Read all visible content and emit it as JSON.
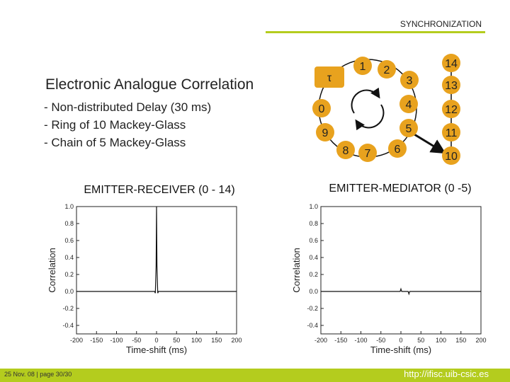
{
  "header": {
    "section": "SYNCHRONIZATION",
    "accent_color": "#b4cc1e"
  },
  "title": "Electronic Analogue Correlation",
  "bullets": [
    "- Non-distributed Delay (30 ms)",
    "- Ring of 10 Mackey-Glass",
    "- Chain of 5 Mackey-Glass"
  ],
  "diagram": {
    "tau_label": "τ",
    "node_color": "#e8a21e",
    "ring_nodes": [
      "0",
      "1",
      "2",
      "3",
      "4",
      "5",
      "6",
      "7",
      "8",
      "9"
    ],
    "chain_nodes": [
      "10",
      "11",
      "12",
      "13",
      "14"
    ]
  },
  "chart_data": [
    {
      "type": "line",
      "title": "EMITTER-RECEIVER (0 - 14)",
      "xlabel": "Time-shift (ms)",
      "ylabel": "Correlation",
      "xlim": [
        -200,
        200
      ],
      "ylim": [
        -0.5,
        1.0
      ],
      "xticks": [
        "-200",
        "-150",
        "-100",
        "-50",
        "0",
        "50",
        "100",
        "150",
        "200"
      ],
      "yticks": [
        "1.0",
        "0.8",
        "0.6",
        "0.4",
        "0.2",
        "0.0",
        "-0.2",
        "-0.4"
      ],
      "grid": false,
      "series": [
        {
          "x": [
            -200,
            -5,
            -3,
            -1,
            0,
            1,
            3,
            5,
            200
          ],
          "y": [
            0.0,
            0.0,
            -0.02,
            0.3,
            1.0,
            0.3,
            -0.02,
            0.0,
            0.0
          ]
        }
      ]
    },
    {
      "type": "line",
      "title": "EMITTER-MEDIATOR (0 -5)",
      "xlabel": "Time-shift (ms)",
      "ylabel": "Correlation",
      "xlim": [
        -200,
        200
      ],
      "ylim": [
        -0.5,
        1.0
      ],
      "xticks": [
        "-200",
        "-150",
        "-100",
        "-50",
        "0",
        "50",
        "100",
        "150",
        "200"
      ],
      "yticks": [
        "1.0",
        "0.8",
        "0.6",
        "0.4",
        "0.2",
        "0.0",
        "-0.2",
        "-0.4"
      ],
      "grid": false,
      "series": [
        {
          "x": [
            -200,
            -2,
            0,
            2,
            18,
            20,
            22,
            200
          ],
          "y": [
            0.0,
            0.0,
            0.03,
            0.0,
            0.0,
            -0.03,
            0.0,
            0.0
          ]
        }
      ]
    }
  ],
  "footer": {
    "left": "25 Nov. 08 | page 30/30",
    "url": "http://ifisc.uib-csic.es"
  }
}
